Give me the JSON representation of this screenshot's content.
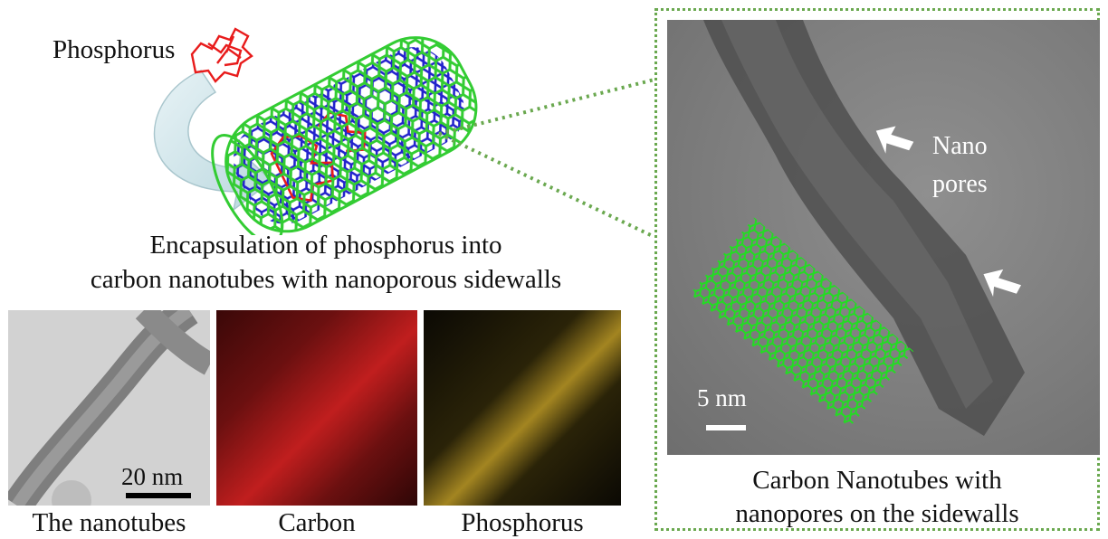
{
  "top": {
    "phosphorus_label": "Phosphorus",
    "caption_line1": "Encapsulation of phosphorus into",
    "caption_line2": "carbon nanotubes with nanoporous sidewalls"
  },
  "bottom_panels": [
    {
      "caption": "The nanotubes",
      "scale_label": "20 nm"
    },
    {
      "caption": "Carbon"
    },
    {
      "caption": "Phosphorus"
    }
  ],
  "right_panel": {
    "nanopores_label_line1": "Nano",
    "nanopores_label_line2": "pores",
    "scale_label": "5 nm",
    "caption_line1": "Carbon Nanotubes with",
    "caption_line2": "nanopores on the sidewalls"
  },
  "colors": {
    "nanotube_green": "#33cc33",
    "nanotube_blue": "#2222cc",
    "phosphorus_red": "#e81b1b",
    "dotted_border": "#6aa84f",
    "carbon_map": "#b01818",
    "phosphorus_map": "#c9a227"
  }
}
